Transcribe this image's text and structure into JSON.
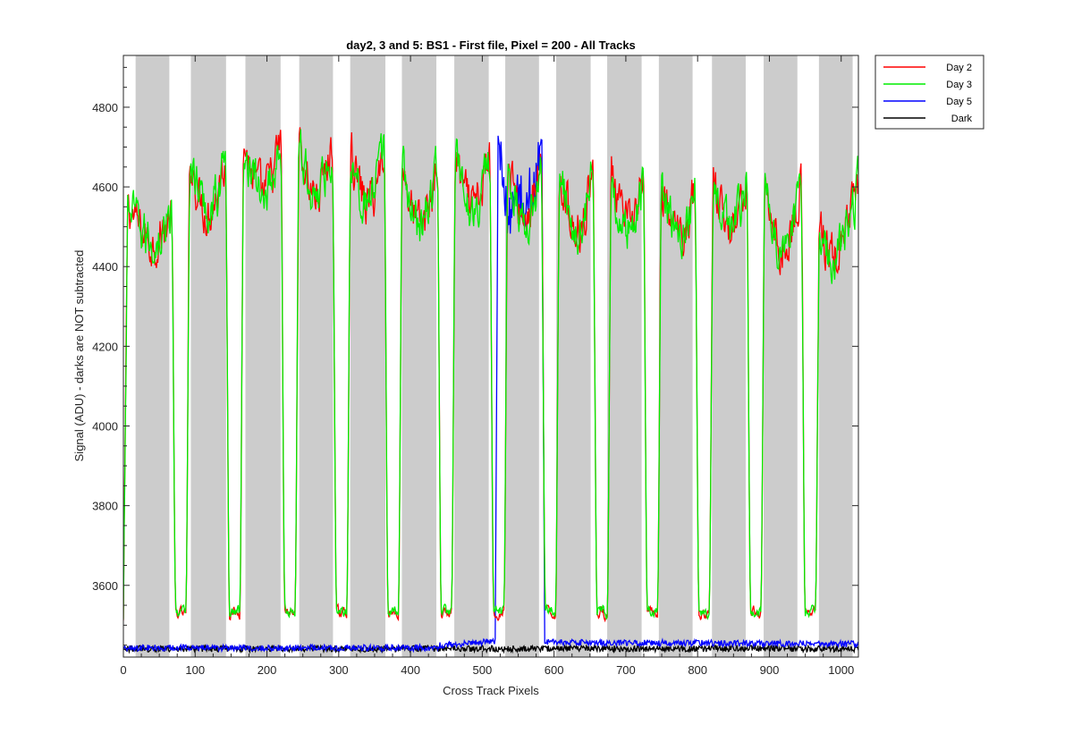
{
  "chart_data": {
    "type": "line",
    "title": "day2, 3 and 5: BS1 - First file, Pixel = 200 - All Tracks",
    "xlabel": "Cross Track Pixels",
    "ylabel": "Signal (ADU) - darks are NOT subtracted",
    "xlim": [
      0,
      1024
    ],
    "ylim": [
      3420,
      4930
    ],
    "xticks": [
      0,
      100,
      200,
      300,
      400,
      500,
      600,
      700,
      800,
      900,
      1000
    ],
    "yticks": [
      3600,
      3800,
      4000,
      4200,
      4400,
      4600,
      4800
    ],
    "grid": false,
    "legend_position": "outside-top-right",
    "shaded_bands": [
      [
        17,
        64
      ],
      [
        94,
        143
      ],
      [
        170,
        219
      ],
      [
        245,
        292
      ],
      [
        316,
        365
      ],
      [
        388,
        436
      ],
      [
        461,
        509
      ],
      [
        532,
        579
      ],
      [
        603,
        651
      ],
      [
        674,
        722
      ],
      [
        746,
        793
      ],
      [
        820,
        867
      ],
      [
        892,
        939
      ],
      [
        969,
        1016
      ]
    ],
    "series": [
      {
        "name": "Day 2",
        "color": "#ff0000",
        "valleys": [
          80,
          155,
          232,
          304,
          376,
          450,
          523,
          595,
          667,
          737,
          809,
          881,
          957
        ],
        "valley_level": 3530,
        "peaks": [
          4590,
          4800,
          4840,
          4840,
          4830,
          4820,
          4810,
          4790,
          4820,
          4760,
          4720,
          4750,
          4780,
          4610
        ],
        "troughs": [
          4460,
          4540,
          4580,
          4580,
          4560,
          4500,
          4540,
          4520,
          4490,
          4500,
          4480,
          4500,
          4440,
          4420
        ],
        "noise": 30
      },
      {
        "name": "Day 3",
        "color": "#00ee00",
        "valleys": [
          80,
          155,
          232,
          304,
          376,
          450,
          523,
          595,
          667,
          737,
          809,
          881,
          957
        ],
        "valley_level": 3535,
        "peaks": [
          4590,
          4800,
          4840,
          4840,
          4830,
          4820,
          4810,
          4790,
          4820,
          4760,
          4720,
          4750,
          4780,
          4610
        ],
        "troughs": [
          4460,
          4540,
          4580,
          4580,
          4560,
          4500,
          4540,
          4520,
          4490,
          4500,
          4480,
          4500,
          4440,
          4420
        ],
        "noise": 30
      },
      {
        "name": "Day 5",
        "color": "#0000ff",
        "baseline": 3443,
        "raised_baseline": 3457,
        "bump_range": [
          522,
          583
        ],
        "bump_level": 4570,
        "bump_edges": [
          4700,
          4720
        ],
        "noise": 8
      },
      {
        "name": "Dark",
        "color": "#000000",
        "baseline": 3441,
        "noise": 8
      }
    ]
  }
}
